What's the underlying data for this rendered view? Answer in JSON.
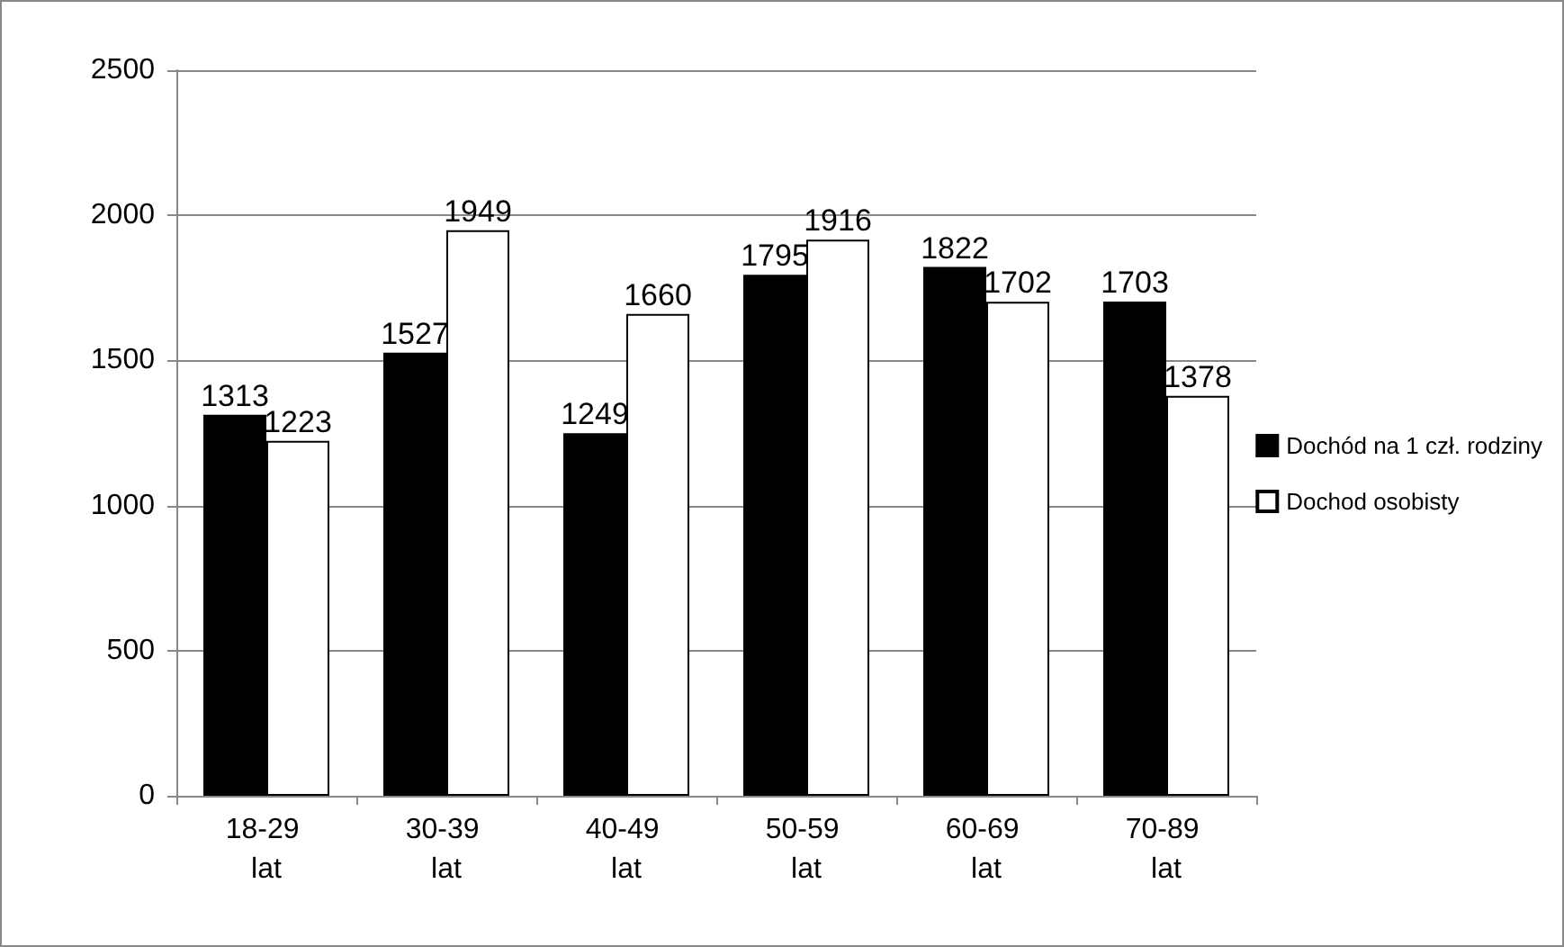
{
  "chart_data": {
    "type": "bar",
    "categories": [
      "18-29 lat",
      "30-39 lat",
      "40-49 lat",
      "50-59 lat",
      "60-69 lat",
      "70-89 lat"
    ],
    "series": [
      {
        "name": "Dochód na 1 czł. rodziny",
        "color": "#000000",
        "values": [
          1313,
          1527,
          1249,
          1795,
          1822,
          1703
        ]
      },
      {
        "name": "Dochod osobisty",
        "color": "#ffffff",
        "values": [
          1223,
          1949,
          1660,
          1916,
          1702,
          1378
        ]
      }
    ],
    "ylim": [
      0,
      2500
    ],
    "yticks": [
      0,
      500,
      1000,
      1500,
      2000,
      2500
    ],
    "grid": "y",
    "legend": "right",
    "data_labels": true
  }
}
